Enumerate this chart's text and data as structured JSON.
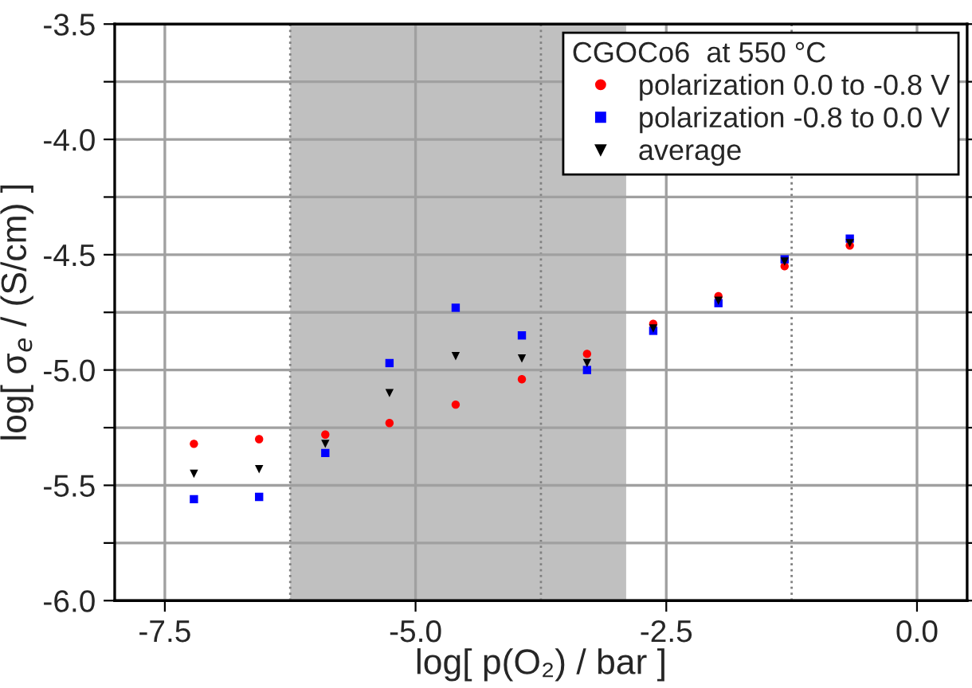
{
  "chart_data": {
    "type": "scatter",
    "xlabel": "log[ p(O₂) / bar ]",
    "ylabel": "log[ σ$_{e}$ / (S/cm) ]",
    "legend_title": "CGOCo6  at 550 °C",
    "x": [
      -7.21,
      -6.56,
      -5.9,
      -5.26,
      -4.6,
      -3.94,
      -3.29,
      -2.63,
      -1.98,
      -1.32,
      -0.67
    ],
    "series": [
      {
        "name": "polarization 0.0 to -0.8 V",
        "color": "#ff0000",
        "marker": "circle",
        "values": [
          -5.32,
          -5.3,
          -5.28,
          -5.23,
          -5.15,
          -5.04,
          -4.93,
          -4.8,
          -4.68,
          -4.55,
          -4.46
        ]
      },
      {
        "name": "polarization -0.8 to 0.0 V",
        "color": "#0000ff",
        "marker": "square",
        "values": [
          -5.56,
          -5.55,
          -5.36,
          -4.97,
          -4.73,
          -4.85,
          -5.0,
          -4.83,
          -4.71,
          -4.52,
          -4.43
        ]
      },
      {
        "name": "average",
        "color": "#000000",
        "marker": "triangle",
        "values": [
          -5.45,
          -5.43,
          -5.32,
          -5.1,
          -4.94,
          -4.95,
          -4.97,
          -4.82,
          -4.7,
          -4.53,
          -4.45
        ]
      }
    ],
    "xlim": [
      -8.0,
      0.5
    ],
    "xticks": [
      -7.5,
      {
        "value": -5,
        "label": "-5.0"
      },
      -2.5,
      {
        "value": 0,
        "label": "0.0"
      }
    ],
    "ylim": [
      -6.0,
      -3.5
    ],
    "yticks": [
      {
        "value": -6,
        "label": "-6.0"
      },
      {
        "value": -5.75,
        "label": null
      },
      -5.5,
      {
        "value": -5.25,
        "label": null
      },
      {
        "value": -5,
        "label": "-5.0"
      },
      {
        "value": -4.75,
        "label": null
      },
      -4.5,
      {
        "value": -4.25,
        "label": null
      },
      {
        "value": -4,
        "label": "-4.0"
      },
      {
        "value": -3.75,
        "label": null
      },
      -3.5
    ],
    "bands": [
      {
        "axis": "x",
        "from": -6.25,
        "to": -2.9,
        "color": "#c0c0c0"
      }
    ],
    "ref_lines": [
      {
        "axis": "x",
        "value": -6.25,
        "color": "#808080",
        "line_style": "dotted"
      },
      {
        "axis": "x",
        "value": -3.75,
        "color": "#808080",
        "line_style": "dotted"
      },
      {
        "axis": "x",
        "value": -1.25,
        "color": "#808080",
        "line_style": "dotted"
      }
    ],
    "grid": true,
    "legend": "top right"
  }
}
